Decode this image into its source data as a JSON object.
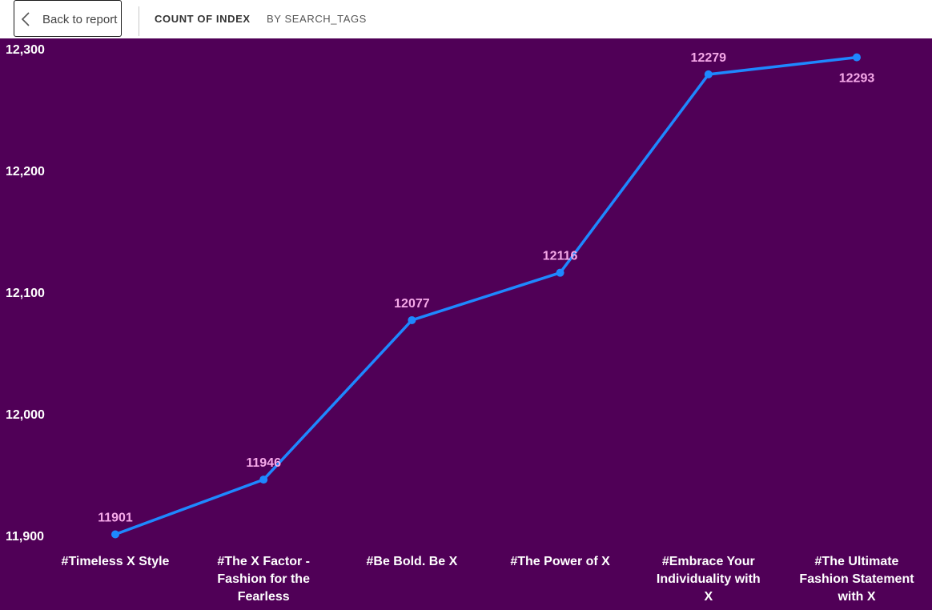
{
  "header": {
    "back_label": "Back to report",
    "measure_label": "COUNT OF INDEX",
    "dimension_label": "BY SEARCH_TAGS"
  },
  "colors": {
    "background": "#500057",
    "line": "#1E88FF",
    "data_label": "#F5A8E8",
    "axis_text": "#FFFFFF"
  },
  "chart_data": {
    "type": "line",
    "title": "",
    "xlabel": "",
    "ylabel": "",
    "categories": [
      "#Timeless X Style",
      "#The X Factor - Fashion for the Fearless",
      "#Be Bold. Be X",
      "#The Power of X",
      "#Embrace Your Individuality with X",
      "#The Ultimate Fashion Statement with X"
    ],
    "category_lines": [
      [
        "#Timeless X Style"
      ],
      [
        "#The X Factor -",
        "Fashion for the",
        "Fearless"
      ],
      [
        "#Be Bold. Be X"
      ],
      [
        "#The Power of X"
      ],
      [
        "#Embrace Your",
        "Individuality with",
        "X"
      ],
      [
        "#The Ultimate",
        "Fashion Statement",
        "with X"
      ]
    ],
    "values": [
      11901,
      11946,
      12077,
      12116,
      12279,
      12293
    ],
    "data_labels": [
      "11901",
      "11946",
      "12077",
      "12116",
      "12279",
      "12293"
    ],
    "label_positions": [
      "above",
      "above",
      "above",
      "above",
      "above",
      "below"
    ],
    "ylim": [
      11900,
      12300
    ],
    "yticks": [
      11900,
      12000,
      12100,
      12200,
      12300
    ],
    "ytick_labels": [
      "11,900",
      "12,000",
      "12,100",
      "12,200",
      "12,300"
    ],
    "grid": false,
    "legend": "none"
  }
}
